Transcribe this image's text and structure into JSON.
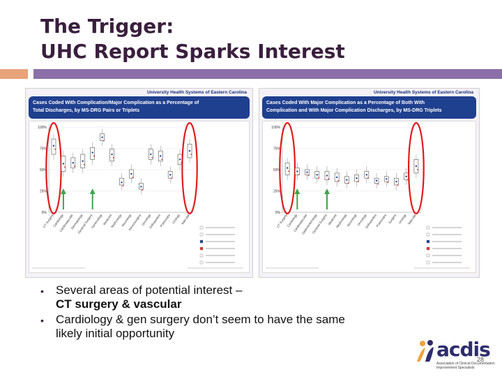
{
  "slide": {
    "title_lines": [
      "The Trigger:",
      "UHC Report Sparks Interest"
    ],
    "bullets": [
      {
        "lines": [
          "Several areas of potential interest –"
        ],
        "bold_lines": [
          "CT surgery & vascular"
        ]
      },
      {
        "lines": [
          "Cardiology & gen surgery don’t seem to have the same",
          "likely initial opportunity"
        ],
        "bold_lines": []
      }
    ],
    "page_number": "28"
  },
  "left_chart": {
    "header": "University Health Systems of Eastern Carolina",
    "title_lines": [
      "Cases Coded With Complication/Major Complication as a Percentage of",
      "Total Discharges, by MS-DRG Pairs or Triplets"
    ]
  },
  "right_chart": {
    "header": "University Health Systems of Eastern Carolina",
    "title_lines": [
      "Cases Coded With Major Complication as a Percentage of Both With",
      "Complication and With Major Complication Discharges, by MS-DRG Triplets"
    ]
  },
  "colors": {
    "title": "#3a1f3d",
    "accent_orange": "#e8a37a",
    "accent_purple": "#8b6fa8",
    "chart_header": "#1f3f8f",
    "red_oval": "#e11b1b",
    "green_arrow": "#3aa64a"
  },
  "logo": {
    "text": "acdis",
    "tagline_lines": [
      "Association of Clinical Documentation",
      "Improvement Specialists"
    ]
  },
  "chart_data": [
    {
      "type": "box",
      "title": "Cases Coded With Complication/Major Complication as a Percentage of Total Discharges, by MS-DRG Pairs or Triplets",
      "ytick_labels": [
        "100%",
        "75%",
        "50%",
        "25%",
        "0%"
      ],
      "ylim": [
        0,
        100
      ],
      "categories": [
        "CT Surgery",
        "Cardiology",
        "Cardiovascular",
        "Dermatology",
        "General Surgery",
        "Gynecology",
        "Medicine",
        "Nephrology",
        "Neurology",
        "Neurosurgery",
        "Oncology",
        "Orthopedics",
        "Pulmonary",
        "Urology",
        "Vascular"
      ],
      "median": [
        78,
        57,
        58,
        60,
        70,
        88,
        68,
        35,
        45,
        30,
        68,
        66,
        44,
        62,
        72
      ],
      "q1": [
        68,
        48,
        52,
        52,
        62,
        84,
        60,
        32,
        40,
        27,
        62,
        60,
        40,
        56,
        64
      ],
      "q3": [
        86,
        66,
        64,
        68,
        76,
        92,
        74,
        40,
        50,
        34,
        74,
        72,
        48,
        68,
        80
      ],
      "highlighted": [
        "CT Surgery",
        "Vascular"
      ],
      "arrows": [
        "Cardiology",
        "General Surgery"
      ]
    },
    {
      "type": "box",
      "title": "Cases Coded With Major Complication as a Percentage of Both With Complication and With Major Complication Discharges, by MS-DRG Triplets",
      "ytick_labels": [
        "100%",
        "75%",
        "50%",
        "25%",
        "0%"
      ],
      "ylim": [
        0,
        100
      ],
      "categories": [
        "CT Surgery",
        "Cardiology",
        "Cardiovascular",
        "Gastroenterology",
        "General Surgery",
        "Medicine",
        "Nephrology",
        "Neurology",
        "Oncology",
        "Orthopedics",
        "Pulmonary",
        "Surgery",
        "Urology",
        "Vascular"
      ],
      "median": [
        52,
        48,
        47,
        44,
        43,
        41,
        38,
        40,
        44,
        37,
        39,
        36,
        42,
        54
      ],
      "q1": [
        44,
        44,
        44,
        40,
        38,
        36,
        34,
        36,
        40,
        34,
        36,
        32,
        38,
        46
      ],
      "q3": [
        58,
        52,
        50,
        48,
        48,
        46,
        42,
        44,
        48,
        40,
        42,
        40,
        46,
        62
      ],
      "highlighted": [
        "CT Surgery",
        "Vascular"
      ],
      "arrows": [
        "Cardiology",
        "General Surgery"
      ]
    }
  ]
}
